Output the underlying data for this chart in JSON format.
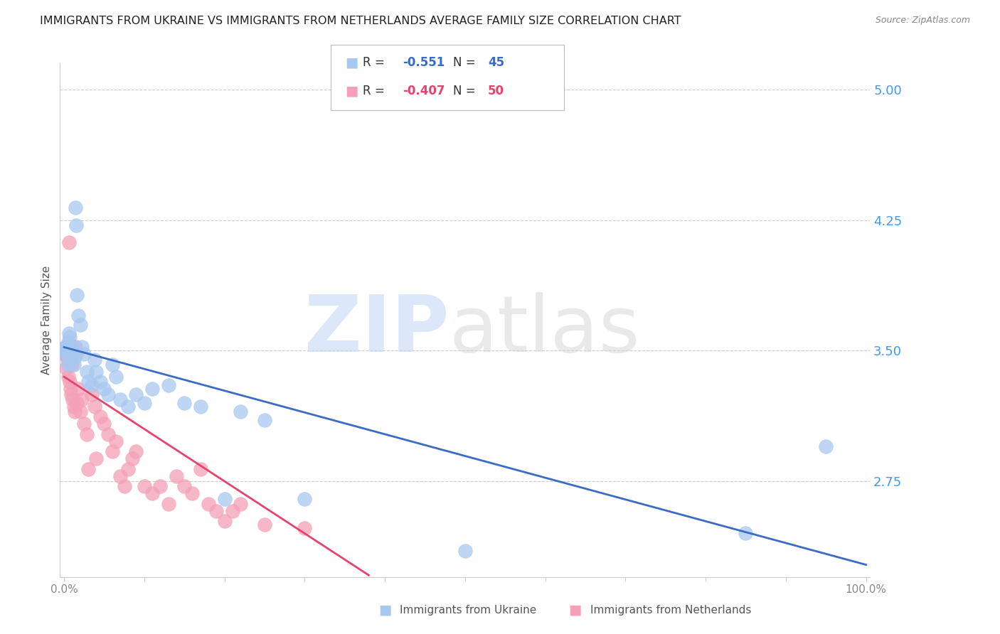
{
  "title": "IMMIGRANTS FROM UKRAINE VS IMMIGRANTS FROM NETHERLANDS AVERAGE FAMILY SIZE CORRELATION CHART",
  "source": "Source: ZipAtlas.com",
  "ylabel": "Average Family Size",
  "yticks": [
    2.75,
    3.5,
    4.25,
    5.0
  ],
  "ymin": 2.2,
  "ymax": 5.15,
  "xmin": -0.005,
  "xmax": 1.005,
  "ukraine_color": "#A8C8F0",
  "netherlands_color": "#F4A0B8",
  "ukraine_line_color": "#3B6CC5",
  "netherlands_line_color": "#E8436A",
  "ukraine_R": -0.551,
  "ukraine_N": 45,
  "netherlands_R": -0.407,
  "netherlands_N": 50,
  "ukraine_x": [
    0.001,
    0.002,
    0.003,
    0.004,
    0.005,
    0.006,
    0.007,
    0.008,
    0.009,
    0.01,
    0.011,
    0.012,
    0.013,
    0.014,
    0.015,
    0.016,
    0.018,
    0.02,
    0.022,
    0.025,
    0.028,
    0.03,
    0.035,
    0.038,
    0.04,
    0.045,
    0.05,
    0.055,
    0.06,
    0.065,
    0.07,
    0.08,
    0.09,
    0.1,
    0.11,
    0.13,
    0.15,
    0.17,
    0.2,
    0.22,
    0.25,
    0.3,
    0.5,
    0.85,
    0.95
  ],
  "ukraine_y": [
    3.5,
    3.52,
    3.48,
    3.42,
    3.55,
    3.6,
    3.58,
    3.45,
    3.5,
    3.52,
    3.48,
    3.42,
    3.46,
    4.32,
    4.22,
    3.82,
    3.7,
    3.65,
    3.52,
    3.48,
    3.38,
    3.32,
    3.3,
    3.45,
    3.38,
    3.32,
    3.28,
    3.25,
    3.42,
    3.35,
    3.22,
    3.18,
    3.25,
    3.2,
    3.28,
    3.3,
    3.2,
    3.18,
    2.65,
    3.15,
    3.1,
    2.65,
    2.35,
    2.45,
    2.95
  ],
  "netherlands_x": [
    0.001,
    0.002,
    0.003,
    0.004,
    0.005,
    0.006,
    0.007,
    0.008,
    0.009,
    0.01,
    0.011,
    0.012,
    0.013,
    0.014,
    0.015,
    0.016,
    0.018,
    0.02,
    0.022,
    0.025,
    0.028,
    0.03,
    0.035,
    0.038,
    0.04,
    0.045,
    0.05,
    0.055,
    0.06,
    0.065,
    0.07,
    0.075,
    0.08,
    0.085,
    0.09,
    0.1,
    0.11,
    0.12,
    0.13,
    0.14,
    0.15,
    0.16,
    0.17,
    0.18,
    0.19,
    0.2,
    0.21,
    0.22,
    0.25,
    0.3
  ],
  "netherlands_y": [
    3.48,
    3.52,
    3.4,
    3.45,
    3.35,
    4.12,
    3.32,
    3.28,
    3.25,
    3.42,
    3.22,
    3.18,
    3.15,
    3.52,
    3.48,
    3.2,
    3.28,
    3.15,
    3.22,
    3.08,
    3.02,
    2.82,
    3.25,
    3.18,
    2.88,
    3.12,
    3.08,
    3.02,
    2.92,
    2.98,
    2.78,
    2.72,
    2.82,
    2.88,
    2.92,
    2.72,
    2.68,
    2.72,
    2.62,
    2.78,
    2.72,
    2.68,
    2.82,
    2.62,
    2.58,
    2.52,
    2.58,
    2.62,
    2.5,
    2.48
  ],
  "axis_color": "#4499EE",
  "grid_color": "#CCCCCC",
  "title_fontsize": 11.5,
  "source_fontsize": 9,
  "axis_label_fontsize": 11,
  "tick_fontsize": 13,
  "legend_fontsize": 12,
  "watermark_zip_color": "#C5D8F5",
  "watermark_atlas_color": "#D5D5D5"
}
